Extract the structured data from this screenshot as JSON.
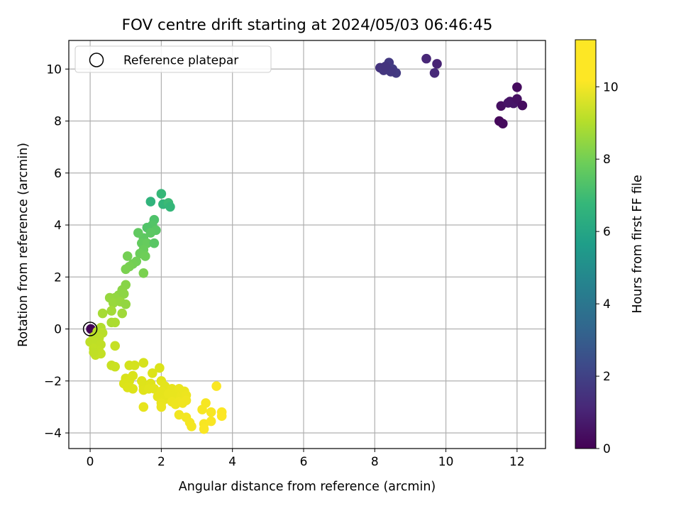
{
  "chart_data": {
    "type": "scatter",
    "title": "FOV centre drift starting at 2024/05/03 06:46:45",
    "xlabel": "Angular distance from reference (arcmin)",
    "ylabel": "Rotation from reference (arcmin)",
    "xlim": [
      -0.6,
      12.8
    ],
    "ylim": [
      -4.6,
      11.1
    ],
    "xticks": [
      "0",
      "2",
      "4",
      "6",
      "8",
      "10",
      "12"
    ],
    "yticks": [
      "−4",
      "−2",
      "0",
      "2",
      "4",
      "6",
      "8",
      "10"
    ],
    "grid": true,
    "legend": {
      "location": "top-left",
      "entries": [
        "Reference platepar"
      ]
    },
    "reference_point": {
      "x": 0,
      "y": 0
    },
    "colorbar": {
      "label": "Hours from first FF file",
      "colormap": "viridis",
      "range": [
        0,
        11.3
      ],
      "ticks": [
        "0",
        "2",
        "4",
        "6",
        "8",
        "10"
      ]
    },
    "points": [
      {
        "x": 0.02,
        "y": 0.0,
        "c": 0.05
      },
      {
        "x": 11.5,
        "y": 8.0,
        "c": 0.2
      },
      {
        "x": 11.6,
        "y": 7.9,
        "c": 0.25
      },
      {
        "x": 11.55,
        "y": 8.58,
        "c": 0.4
      },
      {
        "x": 12.0,
        "y": 9.3,
        "c": 0.3
      },
      {
        "x": 11.8,
        "y": 8.75,
        "c": 0.5
      },
      {
        "x": 11.9,
        "y": 8.68,
        "c": 0.6
      },
      {
        "x": 12.0,
        "y": 8.85,
        "c": 0.45
      },
      {
        "x": 12.15,
        "y": 8.6,
        "c": 0.35
      },
      {
        "x": 11.75,
        "y": 8.7,
        "c": 0.55
      },
      {
        "x": 9.45,
        "y": 10.4,
        "c": 1.1
      },
      {
        "x": 9.75,
        "y": 10.2,
        "c": 1.0
      },
      {
        "x": 9.68,
        "y": 9.85,
        "c": 1.2
      },
      {
        "x": 8.15,
        "y": 10.05,
        "c": 1.5
      },
      {
        "x": 8.25,
        "y": 9.95,
        "c": 1.6
      },
      {
        "x": 8.4,
        "y": 10.25,
        "c": 1.7
      },
      {
        "x": 8.5,
        "y": 10.0,
        "c": 1.8
      },
      {
        "x": 8.6,
        "y": 9.85,
        "c": 1.75
      },
      {
        "x": 8.45,
        "y": 9.9,
        "c": 1.65
      },
      {
        "x": 8.3,
        "y": 10.1,
        "c": 1.55
      },
      {
        "x": 1.7,
        "y": 4.9,
        "c": 6.6
      },
      {
        "x": 2.0,
        "y": 5.2,
        "c": 6.8
      },
      {
        "x": 2.05,
        "y": 4.8,
        "c": 6.7
      },
      {
        "x": 2.2,
        "y": 4.85,
        "c": 6.9
      },
      {
        "x": 2.25,
        "y": 4.7,
        "c": 6.75
      },
      {
        "x": 1.8,
        "y": 4.2,
        "c": 7.3
      },
      {
        "x": 1.75,
        "y": 4.0,
        "c": 7.4
      },
      {
        "x": 1.85,
        "y": 3.8,
        "c": 7.5
      },
      {
        "x": 1.6,
        "y": 3.9,
        "c": 7.35
      },
      {
        "x": 1.7,
        "y": 3.7,
        "c": 7.55
      },
      {
        "x": 1.5,
        "y": 3.5,
        "c": 7.6
      },
      {
        "x": 1.35,
        "y": 3.7,
        "c": 7.65
      },
      {
        "x": 1.45,
        "y": 3.3,
        "c": 7.7
      },
      {
        "x": 1.6,
        "y": 3.3,
        "c": 7.75
      },
      {
        "x": 1.8,
        "y": 3.3,
        "c": 7.5
      },
      {
        "x": 1.5,
        "y": 3.05,
        "c": 7.8
      },
      {
        "x": 1.4,
        "y": 2.9,
        "c": 7.85
      },
      {
        "x": 1.55,
        "y": 2.8,
        "c": 7.9
      },
      {
        "x": 1.3,
        "y": 2.6,
        "c": 7.95
      },
      {
        "x": 1.2,
        "y": 2.5,
        "c": 8.0
      },
      {
        "x": 1.05,
        "y": 2.8,
        "c": 8.0
      },
      {
        "x": 1.1,
        "y": 2.4,
        "c": 8.05
      },
      {
        "x": 1.0,
        "y": 2.3,
        "c": 8.1
      },
      {
        "x": 1.5,
        "y": 2.15,
        "c": 8.1
      },
      {
        "x": 1.0,
        "y": 1.7,
        "c": 8.3
      },
      {
        "x": 0.9,
        "y": 1.5,
        "c": 8.35
      },
      {
        "x": 0.8,
        "y": 1.3,
        "c": 8.4
      },
      {
        "x": 0.95,
        "y": 1.35,
        "c": 8.4
      },
      {
        "x": 0.7,
        "y": 1.2,
        "c": 8.5
      },
      {
        "x": 0.55,
        "y": 1.2,
        "c": 8.55
      },
      {
        "x": 0.65,
        "y": 1.0,
        "c": 8.6
      },
      {
        "x": 0.85,
        "y": 1.05,
        "c": 8.55
      },
      {
        "x": 1.0,
        "y": 0.95,
        "c": 8.5
      },
      {
        "x": 0.9,
        "y": 0.6,
        "c": 8.7
      },
      {
        "x": 0.6,
        "y": 0.7,
        "c": 8.75
      },
      {
        "x": 0.35,
        "y": 0.6,
        "c": 8.8
      },
      {
        "x": 0.6,
        "y": 0.25,
        "c": 8.85
      },
      {
        "x": 0.7,
        "y": 0.25,
        "c": 8.9
      },
      {
        "x": 0.2,
        "y": -0.1,
        "c": 9.1
      },
      {
        "x": 0.3,
        "y": 0.05,
        "c": 9.0
      },
      {
        "x": 0.35,
        "y": -0.15,
        "c": 9.15
      },
      {
        "x": 0.1,
        "y": -0.3,
        "c": 9.2
      },
      {
        "x": 0.25,
        "y": -0.35,
        "c": 9.25
      },
      {
        "x": 0.0,
        "y": -0.5,
        "c": 9.3
      },
      {
        "x": 0.15,
        "y": -0.55,
        "c": 9.3
      },
      {
        "x": 0.3,
        "y": -0.6,
        "c": 9.35
      },
      {
        "x": 0.1,
        "y": -0.75,
        "c": 9.4
      },
      {
        "x": 0.25,
        "y": -0.85,
        "c": 9.4
      },
      {
        "x": 0.15,
        "y": -1.0,
        "c": 9.45
      },
      {
        "x": 0.3,
        "y": -0.95,
        "c": 9.45
      },
      {
        "x": 0.1,
        "y": -0.9,
        "c": 9.35
      },
      {
        "x": 0.7,
        "y": -0.65,
        "c": 9.5
      },
      {
        "x": 0.6,
        "y": -1.4,
        "c": 9.6
      },
      {
        "x": 0.7,
        "y": -1.45,
        "c": 9.65
      },
      {
        "x": 1.1,
        "y": -1.4,
        "c": 9.9
      },
      {
        "x": 1.25,
        "y": -1.4,
        "c": 9.95
      },
      {
        "x": 1.5,
        "y": -1.3,
        "c": 10.0
      },
      {
        "x": 1.0,
        "y": -1.9,
        "c": 10.05
      },
      {
        "x": 1.2,
        "y": -1.8,
        "c": 10.1
      },
      {
        "x": 1.1,
        "y": -2.0,
        "c": 10.1
      },
      {
        "x": 0.95,
        "y": -2.1,
        "c": 10.15
      },
      {
        "x": 1.05,
        "y": -2.25,
        "c": 10.2
      },
      {
        "x": 1.2,
        "y": -2.3,
        "c": 10.2
      },
      {
        "x": 1.45,
        "y": -2.0,
        "c": 10.25
      },
      {
        "x": 1.5,
        "y": -2.2,
        "c": 10.25
      },
      {
        "x": 1.5,
        "y": -2.35,
        "c": 10.3
      },
      {
        "x": 1.7,
        "y": -2.1,
        "c": 10.3
      },
      {
        "x": 1.75,
        "y": -1.7,
        "c": 10.2
      },
      {
        "x": 1.95,
        "y": -1.5,
        "c": 10.15
      },
      {
        "x": 1.65,
        "y": -2.3,
        "c": 10.35
      },
      {
        "x": 1.8,
        "y": -2.3,
        "c": 10.4
      },
      {
        "x": 2.0,
        "y": -2.0,
        "c": 10.4
      },
      {
        "x": 2.1,
        "y": -2.2,
        "c": 10.45
      },
      {
        "x": 2.0,
        "y": -2.4,
        "c": 10.5
      },
      {
        "x": 1.9,
        "y": -2.6,
        "c": 10.5
      },
      {
        "x": 2.1,
        "y": -2.7,
        "c": 10.55
      },
      {
        "x": 2.3,
        "y": -2.3,
        "c": 10.55
      },
      {
        "x": 2.2,
        "y": -2.5,
        "c": 10.6
      },
      {
        "x": 2.4,
        "y": -2.5,
        "c": 10.6
      },
      {
        "x": 2.5,
        "y": -2.3,
        "c": 10.65
      },
      {
        "x": 2.55,
        "y": -2.6,
        "c": 10.7
      },
      {
        "x": 2.65,
        "y": -2.4,
        "c": 10.7
      },
      {
        "x": 2.7,
        "y": -2.55,
        "c": 10.75
      },
      {
        "x": 2.3,
        "y": -2.8,
        "c": 10.75
      },
      {
        "x": 2.4,
        "y": -2.9,
        "c": 10.8
      },
      {
        "x": 2.5,
        "y": -2.8,
        "c": 10.8
      },
      {
        "x": 2.6,
        "y": -2.85,
        "c": 10.85
      },
      {
        "x": 2.7,
        "y": -2.75,
        "c": 10.85
      },
      {
        "x": 2.0,
        "y": -2.85,
        "c": 10.6
      },
      {
        "x": 2.0,
        "y": -3.0,
        "c": 10.7
      },
      {
        "x": 1.5,
        "y": -3.0,
        "c": 10.55
      },
      {
        "x": 2.5,
        "y": -3.3,
        "c": 10.9
      },
      {
        "x": 2.7,
        "y": -3.4,
        "c": 10.95
      },
      {
        "x": 2.8,
        "y": -3.6,
        "c": 11.0
      },
      {
        "x": 2.85,
        "y": -3.75,
        "c": 11.0
      },
      {
        "x": 3.15,
        "y": -3.1,
        "c": 11.05
      },
      {
        "x": 3.25,
        "y": -2.85,
        "c": 11.05
      },
      {
        "x": 3.2,
        "y": -3.65,
        "c": 11.1
      },
      {
        "x": 3.2,
        "y": -3.85,
        "c": 11.15
      },
      {
        "x": 3.4,
        "y": -3.2,
        "c": 11.1
      },
      {
        "x": 3.4,
        "y": -3.55,
        "c": 11.15
      },
      {
        "x": 3.55,
        "y": -2.2,
        "c": 11.2
      },
      {
        "x": 3.7,
        "y": -3.2,
        "c": 11.25
      },
      {
        "x": 3.7,
        "y": -3.35,
        "c": 11.25
      }
    ]
  }
}
